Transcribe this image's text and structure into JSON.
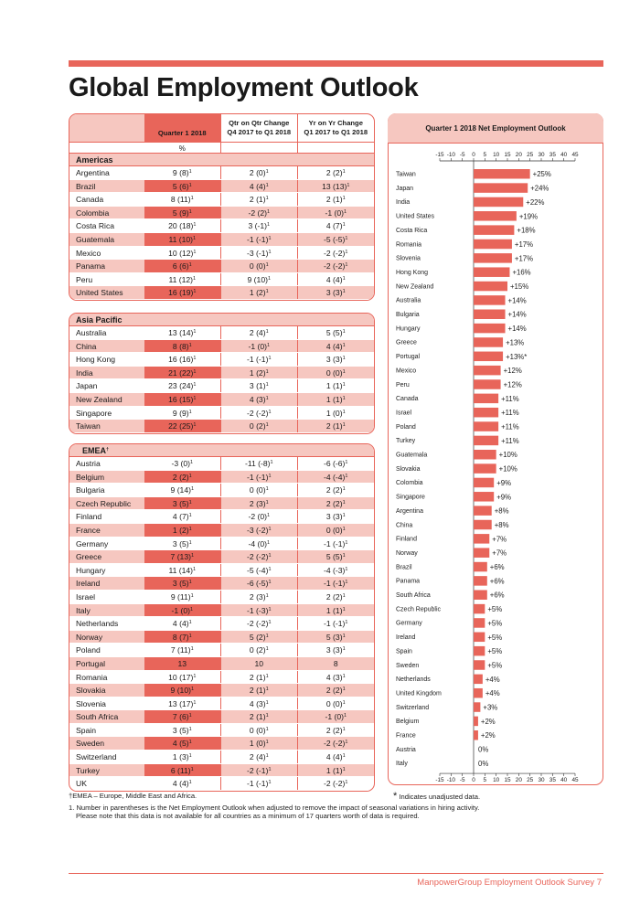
{
  "title": "Global Employment Outlook",
  "table": {
    "headers": [
      "",
      "Quarter 1 2018",
      "Qtr on Qtr Change\nQ4 2017 to Q1 2018",
      "Yr on Yr Change\nQ1 2017 to Q1 2018"
    ],
    "unit": "%",
    "regions": [
      {
        "name": "Americas",
        "rows": [
          {
            "country": "Argentina",
            "q1": "9 (8)",
            "qoq": "2 (0)",
            "yoy": "2 (2)",
            "hl": false
          },
          {
            "country": "Brazil",
            "q1": "5 (6)",
            "qoq": "4 (4)",
            "yoy": "13 (13)",
            "hl": true
          },
          {
            "country": "Canada",
            "q1": "8 (11)",
            "qoq": "2 (1)",
            "yoy": "2 (1)",
            "hl": false
          },
          {
            "country": "Colombia",
            "q1": "5 (9)",
            "qoq": "-2 (2)",
            "yoy": "-1 (0)",
            "hl": true
          },
          {
            "country": "Costa Rica",
            "q1": "20 (18)",
            "qoq": "3 (-1)",
            "yoy": "4 (7)",
            "hl": false
          },
          {
            "country": "Guatemala",
            "q1": "11 (10)",
            "qoq": "-1 (-1)",
            "yoy": "-5 (-5)",
            "hl": true
          },
          {
            "country": "Mexico",
            "q1": "10 (12)",
            "qoq": "-3 (-1)",
            "yoy": "-2 (-2)",
            "hl": false
          },
          {
            "country": "Panama",
            "q1": "6 (6)",
            "qoq": "0 (0)",
            "yoy": "-2 (-2)",
            "hl": true
          },
          {
            "country": "Peru",
            "q1": "11 (12)",
            "qoq": "9 (10)",
            "yoy": "4 (4)",
            "hl": false
          },
          {
            "country": "United States",
            "q1": "16 (19)",
            "qoq": "1 (2)",
            "yoy": "3 (3)",
            "hl": true
          }
        ]
      },
      {
        "name": "Asia Pacific",
        "rows": [
          {
            "country": "Australia",
            "q1": "13 (14)",
            "qoq": "2 (4)",
            "yoy": "5 (5)",
            "hl": false
          },
          {
            "country": "China",
            "q1": "8 (8)",
            "qoq": "-1 (0)",
            "yoy": "4 (4)",
            "hl": true
          },
          {
            "country": "Hong Kong",
            "q1": "16 (16)",
            "qoq": "-1 (-1)",
            "yoy": "3 (3)",
            "hl": false
          },
          {
            "country": "India",
            "q1": "21 (22)",
            "qoq": "1 (2)",
            "yoy": "0 (0)",
            "hl": true
          },
          {
            "country": "Japan",
            "q1": "23 (24)",
            "qoq": "3 (1)",
            "yoy": "1 (1)",
            "hl": false
          },
          {
            "country": "New Zealand",
            "q1": "16 (15)",
            "qoq": "4 (3)",
            "yoy": "1 (1)",
            "hl": true
          },
          {
            "country": "Singapore",
            "q1": "9 (9)",
            "qoq": "-2 (-2)",
            "yoy": "1 (0)",
            "hl": false
          },
          {
            "country": "Taiwan",
            "q1": "22 (25)",
            "qoq": "0 (2)",
            "yoy": "2 (1)",
            "hl": true
          }
        ]
      },
      {
        "name": "EMEA",
        "rows": [
          {
            "country": "Austria",
            "q1": "-3 (0)",
            "qoq": "-11 (-8)",
            "yoy": "-6 (-6)",
            "hl": false
          },
          {
            "country": "Belgium",
            "q1": "2 (2)",
            "qoq": "-1 (-1)",
            "yoy": "-4 (-4)",
            "hl": true
          },
          {
            "country": "Bulgaria",
            "q1": "9 (14)",
            "qoq": "0 (0)",
            "yoy": "2 (2)",
            "hl": false
          },
          {
            "country": "Czech Republic",
            "q1": "3 (5)",
            "qoq": "2 (3)",
            "yoy": "2 (2)",
            "hl": true
          },
          {
            "country": "Finland",
            "q1": "4 (7)",
            "qoq": "-2 (0)",
            "yoy": "3 (3)",
            "hl": false
          },
          {
            "country": "France",
            "q1": "1 (2)",
            "qoq": "-3 (-2)",
            "yoy": "0 (0)",
            "hl": true
          },
          {
            "country": "Germany",
            "q1": "3 (5)",
            "qoq": "-4 (0)",
            "yoy": "-1 (-1)",
            "hl": false
          },
          {
            "country": "Greece",
            "q1": "7 (13)",
            "qoq": "-2 (-2)",
            "yoy": "5 (5)",
            "hl": true
          },
          {
            "country": "Hungary",
            "q1": "11 (14)",
            "qoq": "-5 (-4)",
            "yoy": "-4 (-3)",
            "hl": false
          },
          {
            "country": "Ireland",
            "q1": "3 (5)",
            "qoq": "-6 (-5)",
            "yoy": "-1 (-1)",
            "hl": true
          },
          {
            "country": "Israel",
            "q1": "9 (11)",
            "qoq": "2 (3)",
            "yoy": "2 (2)",
            "hl": false
          },
          {
            "country": "Italy",
            "q1": "-1 (0)",
            "qoq": "-1 (-3)",
            "yoy": "1 (1)",
            "hl": true
          },
          {
            "country": "Netherlands",
            "q1": "4 (4)",
            "qoq": "-2 (-2)",
            "yoy": "-1 (-1)",
            "hl": false
          },
          {
            "country": "Norway",
            "q1": "8 (7)",
            "qoq": "5 (2)",
            "yoy": "5 (3)",
            "hl": true
          },
          {
            "country": "Poland",
            "q1": "7 (11)",
            "qoq": "0 (2)",
            "yoy": "3 (3)",
            "hl": false
          },
          {
            "country": "Portugal",
            "q1": "13",
            "qoq": "10",
            "yoy": "8",
            "hl": true,
            "nosup": true
          },
          {
            "country": "Romania",
            "q1": "10 (17)",
            "qoq": "2 (1)",
            "yoy": "4 (3)",
            "hl": false
          },
          {
            "country": "Slovakia",
            "q1": "9 (10)",
            "qoq": "2 (1)",
            "yoy": "2 (2)",
            "hl": true
          },
          {
            "country": "Slovenia",
            "q1": "13 (17)",
            "qoq": "4 (3)",
            "yoy": "0 (0)",
            "hl": false
          },
          {
            "country": "South Africa",
            "q1": "7 (6)",
            "qoq": "2 (1)",
            "yoy": "-1 (0)",
            "hl": true
          },
          {
            "country": "Spain",
            "q1": "3 (5)",
            "qoq": "0 (0)",
            "yoy": "2 (2)",
            "hl": false
          },
          {
            "country": "Sweden",
            "q1": "4 (5)",
            "qoq": "1 (0)",
            "yoy": "-2 (-2)",
            "hl": true
          },
          {
            "country": "Switzerland",
            "q1": "1 (3)",
            "qoq": "2 (4)",
            "yoy": "4 (4)",
            "hl": false
          },
          {
            "country": "Turkey",
            "q1": "6 (11)",
            "qoq": "-2 (-1)",
            "yoy": "1 (1)",
            "hl": true
          },
          {
            "country": "UK",
            "q1": "4 (4)",
            "qoq": "-1 (-1)",
            "yoy": "-2 (-2)",
            "hl": false
          }
        ]
      }
    ]
  },
  "chart_data": {
    "type": "bar",
    "orientation": "horizontal",
    "title": "Quarter 1 2018 Net Employment Outlook",
    "xlim": [
      -15,
      45
    ],
    "xticks": [
      -15,
      -10,
      -5,
      0,
      5,
      10,
      15,
      20,
      25,
      30,
      35,
      40,
      45
    ],
    "categories": [
      "Taiwan",
      "Japan",
      "India",
      "United States",
      "Costa Rica",
      "Romania",
      "Slovenia",
      "Hong Kong",
      "New Zealand",
      "Australia",
      "Bulgaria",
      "Hungary",
      "Greece",
      "Portugal",
      "Mexico",
      "Peru",
      "Canada",
      "Israel",
      "Poland",
      "Turkey",
      "Guatemala",
      "Slovakia",
      "Colombia",
      "Singapore",
      "Argentina",
      "China",
      "Finland",
      "Norway",
      "Brazil",
      "Panama",
      "South Africa",
      "Czech Republic",
      "Germany",
      "Ireland",
      "Spain",
      "Sweden",
      "Netherlands",
      "United Kingdom",
      "Switzerland",
      "Belgium",
      "France",
      "Austria",
      "Italy"
    ],
    "values": [
      25,
      24,
      22,
      19,
      18,
      17,
      17,
      16,
      15,
      14,
      14,
      14,
      13,
      13,
      12,
      12,
      11,
      11,
      11,
      11,
      10,
      10,
      9,
      9,
      8,
      8,
      7,
      7,
      6,
      6,
      6,
      5,
      5,
      5,
      5,
      5,
      4,
      4,
      3,
      2,
      2,
      0,
      0
    ],
    "labels": [
      "+25%",
      "+24%",
      "+22%",
      "+19%",
      "+18%",
      "+17%",
      "+17%",
      "+16%",
      "+15%",
      "+14%",
      "+14%",
      "+14%",
      "+13%",
      "+13%*",
      "+12%",
      "+12%",
      "+11%",
      "+11%",
      "+11%",
      "+11%",
      "+10%",
      "+10%",
      "+9%",
      "+9%",
      "+8%",
      "+8%",
      "+7%",
      "+7%",
      "+6%",
      "+6%",
      "+6%",
      "+5%",
      "+5%",
      "+5%",
      "+5%",
      "+5%",
      "+4%",
      "+4%",
      "+3%",
      "+2%",
      "+2%",
      "0%",
      "0%"
    ],
    "bar_color": "#e8655a"
  },
  "footnotes": {
    "emea": "EMEA – Europe, Middle East and Africa.",
    "unadjusted": "Indicates unadjusted data.",
    "note1_line1": "1. Number in parentheses is the Net Employment Outlook when adjusted to remove the impact of seasonal variations in hiring activity.",
    "note1_line2": "Please note that this data is not available for all countries as a minimum of 17 quarters worth of data is required."
  },
  "page_footer": "ManpowerGroup Employment Outlook Survey   7",
  "colors": {
    "accent": "#e8655a",
    "light": "#f6c7c0"
  }
}
